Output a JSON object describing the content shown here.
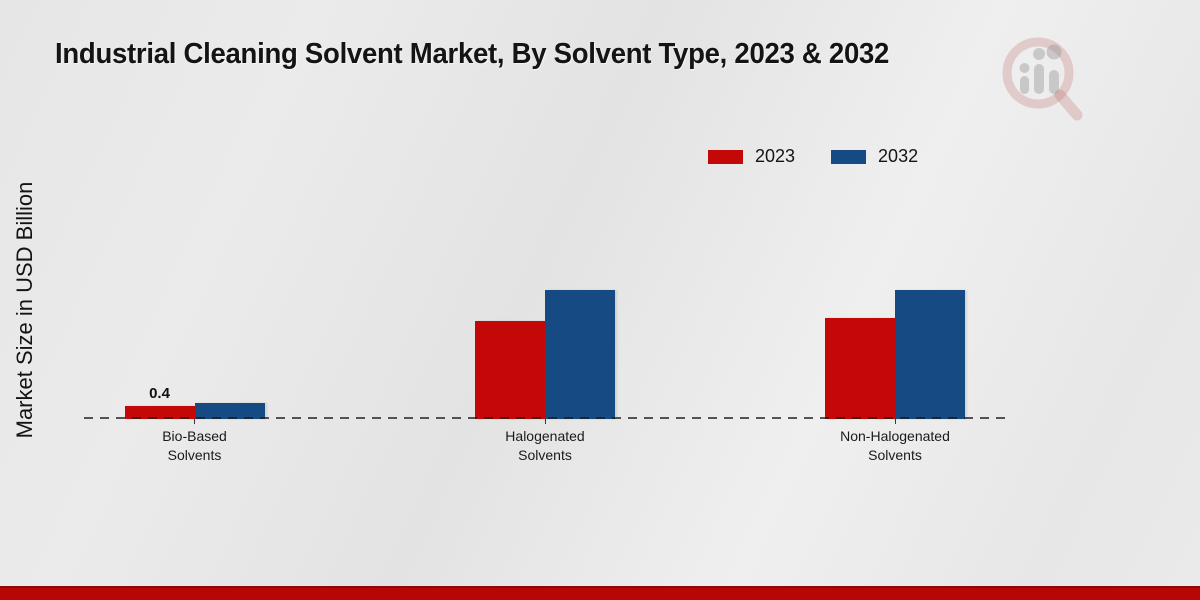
{
  "header": {
    "title": "Industrial Cleaning Solvent Market, By Solvent Type, 2023 & 2032"
  },
  "y_axis": {
    "label": "Market Size in USD Billion"
  },
  "legend": {
    "items": [
      {
        "label": "2023",
        "color": "#c40808"
      },
      {
        "label": "2032",
        "color": "#164a82"
      }
    ]
  },
  "chart_data": {
    "type": "bar",
    "title": "Industrial Cleaning Solvent Market, By Solvent Type, 2023 & 2032",
    "ylabel": "Market Size in USD Billion",
    "xlabel": "",
    "categories": [
      "Bio-Based Solvents",
      "Halogenated Solvents",
      "Non-Halogenated Solvents"
    ],
    "series": [
      {
        "name": "2023",
        "color": "#c40808",
        "values": [
          0.4,
          3.1,
          3.2
        ]
      },
      {
        "name": "2032",
        "color": "#164a82",
        "values": [
          0.5,
          4.1,
          4.1
        ]
      }
    ],
    "data_labels": [
      {
        "series_index": 0,
        "category_index": 0,
        "text": "0.4"
      }
    ],
    "ylim": [
      0,
      4.5
    ],
    "grid": false,
    "y_tick_labels_visible": false,
    "legend_position": "top-right",
    "baseline_style": "dashed"
  },
  "watermark": {
    "icon": "magnifier-bar-chart-logo"
  },
  "footer": {
    "band_color": "#b80606"
  }
}
